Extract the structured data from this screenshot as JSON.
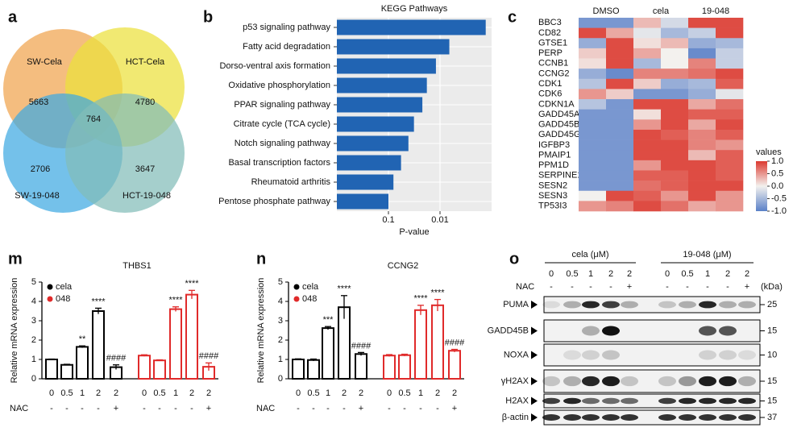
{
  "venn": {
    "panel": "a",
    "sets": [
      {
        "name": "SW-Cela",
        "color": "#f0a44e"
      },
      {
        "name": "HCT-Cela",
        "color": "#ebe03c"
      },
      {
        "name": "SW-19-048",
        "color": "#3ea9e2"
      },
      {
        "name": "HCT-19-048",
        "color": "#82bdb9"
      }
    ],
    "counts": [
      5663,
      4780,
      764,
      2706,
      3647
    ]
  },
  "chart_data": [
    {
      "type": "barh",
      "panel": "b",
      "title": "KEGG Pathways",
      "categories": [
        "p53 signaling pathway",
        "Fatty acid degradation",
        "Dorso-ventral axis formation",
        "Oxidative phosphorylation",
        "PPAR signaling pathway",
        "Citrate cycle (TCA cycle)",
        "Notch signaling pathway",
        "Basal transcription factors",
        "Rheumatoid arthritis",
        "Pentose phosphate pathway"
      ],
      "values": [
        0.0013,
        0.0066,
        0.012,
        0.018,
        0.022,
        0.032,
        0.041,
        0.057,
        0.08,
        0.1
      ],
      "color": "#2164b3",
      "xlabel": "P-value",
      "xscale": "log",
      "xlim": [
        1,
        0.001
      ],
      "xticks": [
        0.1,
        0.01
      ],
      "grid": true
    },
    {
      "type": "heatmap",
      "panel": "c",
      "groups": [
        "DMSO",
        "cela",
        "19-048"
      ],
      "rows": [
        "BBC3",
        "CD82",
        "GTSE1",
        "PERP",
        "CCNB1",
        "CCNG2",
        "CDK1",
        "CDK6",
        "CDKN1A",
        "GADD45A",
        "GADD45B",
        "GADD45G",
        "IGFBP3",
        "PMAIP1",
        "PPM1D",
        "SERPINE1",
        "SESN2",
        "SESN3",
        "TP53I3"
      ],
      "values": [
        [
          -0.8,
          -0.8,
          0.3,
          -0.2,
          0.9,
          0.9
        ],
        [
          0.9,
          0.4,
          -0.1,
          -0.5,
          -0.3,
          0.9
        ],
        [
          -0.6,
          0.9,
          0.1,
          0.3,
          -0.6,
          -0.5
        ],
        [
          0.2,
          0.9,
          0.4,
          0.0,
          -0.9,
          -0.3
        ],
        [
          0.1,
          0.9,
          -0.5,
          0.0,
          0.6,
          -0.3
        ],
        [
          -0.6,
          -0.9,
          0.6,
          0.6,
          0.7,
          0.9
        ],
        [
          -0.4,
          0.9,
          0.2,
          -0.6,
          -0.5,
          0.8
        ],
        [
          0.5,
          0.2,
          -0.8,
          -0.8,
          -0.6,
          -0.1
        ],
        [
          -0.4,
          -0.8,
          0.9,
          0.9,
          0.4,
          0.7
        ],
        [
          -0.8,
          -0.8,
          0.1,
          0.9,
          0.8,
          0.8
        ],
        [
          -0.8,
          -0.8,
          0.5,
          0.9,
          0.4,
          0.9
        ],
        [
          -0.8,
          -0.8,
          0.9,
          0.8,
          0.6,
          0.8
        ],
        [
          -0.8,
          -0.8,
          0.9,
          0.9,
          0.6,
          0.5
        ],
        [
          -0.8,
          -0.8,
          0.9,
          0.9,
          0.3,
          0.8
        ],
        [
          -0.8,
          -0.8,
          0.5,
          0.9,
          0.9,
          0.8
        ],
        [
          -0.8,
          -0.8,
          0.8,
          0.8,
          0.9,
          0.8
        ],
        [
          -0.8,
          -0.8,
          0.7,
          0.8,
          0.9,
          0.9
        ],
        [
          0.0,
          0.9,
          0.8,
          0.5,
          0.9,
          0.5
        ],
        [
          0.5,
          0.6,
          0.9,
          0.7,
          0.4,
          0.5
        ]
      ],
      "legend_title": "values",
      "clim": [
        -1,
        1
      ],
      "cticks": [
        {
          "value": 1,
          "label": "1.0"
        },
        {
          "value": 0.5,
          "label": "0.5"
        },
        {
          "value": 0,
          "label": "0.0"
        },
        {
          "value": -0.5,
          "label": "-0.5"
        },
        {
          "value": -1,
          "label": "-1.0"
        }
      ],
      "colors": [
        "#5a80c8",
        "#f3f1ee",
        "#dc3a30"
      ]
    },
    {
      "type": "grouped_bar",
      "panel": "m",
      "title": "THBS1",
      "ylabel": "Relative mRNA expression",
      "categories": [
        "0",
        "0.5",
        "1",
        "2",
        "2"
      ],
      "nac_label": "NAC",
      "nac": [
        "-",
        "-",
        "-",
        "-",
        "+"
      ],
      "ylim": [
        0,
        5
      ],
      "yticks": [
        0,
        1,
        2,
        3,
        4,
        5
      ],
      "legend": "upper left",
      "series": [
        {
          "name": "cela",
          "color": "#000000",
          "values": [
            1,
            0.72,
            1.65,
            3.5,
            0.6
          ],
          "errors": [
            0.02,
            0.03,
            0.05,
            0.15,
            0.12
          ],
          "significance": [
            null,
            null,
            "**",
            "****",
            "####"
          ]
        },
        {
          "name": "048",
          "color": "#e02a2a",
          "values": [
            1.2,
            0.95,
            3.6,
            4.35,
            0.62
          ],
          "errors": [
            0.04,
            0.03,
            0.12,
            0.22,
            0.2
          ],
          "significance": [
            null,
            null,
            "****",
            "****",
            "####"
          ]
        }
      ]
    },
    {
      "type": "grouped_bar",
      "panel": "n",
      "title": "CCNG2",
      "ylabel": "Relative mRNA expression",
      "categories": [
        "0",
        "0.5",
        "1",
        "2",
        "2"
      ],
      "nac_label": "NAC",
      "nac": [
        "-",
        "-",
        "-",
        "-",
        "+"
      ],
      "ylim": [
        0,
        5
      ],
      "yticks": [
        0,
        1,
        2,
        3,
        4,
        5
      ],
      "legend": "upper left",
      "series": [
        {
          "name": "cela",
          "color": "#000000",
          "values": [
            1,
            0.97,
            2.62,
            3.7,
            1.28
          ],
          "errors": [
            0.03,
            0.05,
            0.08,
            0.6,
            0.08
          ],
          "significance": [
            null,
            null,
            "***",
            "****",
            "####"
          ]
        },
        {
          "name": "048",
          "color": "#e02a2a",
          "values": [
            1.2,
            1.22,
            3.55,
            3.8,
            1.45
          ],
          "errors": [
            0.05,
            0.05,
            0.25,
            0.3,
            0.07
          ],
          "significance": [
            null,
            null,
            "****",
            "****",
            "####"
          ]
        }
      ]
    }
  ],
  "blot": {
    "panel": "o",
    "groups": [
      "cela (μM)",
      "19-048 (μM)"
    ],
    "lanes": [
      "0",
      "0.5",
      "1",
      "2",
      "2"
    ],
    "nac_label": "NAC",
    "nac": [
      "-",
      "-",
      "-",
      "-",
      "+"
    ],
    "kda_label": "(kDa)",
    "proteins": [
      {
        "name": "PUMA",
        "kda": 25
      },
      {
        "name": "GADD45B",
        "kda": 15
      },
      {
        "name": "NOXA",
        "kda": 10
      },
      {
        "name": "γH2AX",
        "kda": 15
      },
      {
        "name": "H2AX",
        "kda": 15
      },
      {
        "name": "β-actin",
        "kda": 37
      }
    ]
  }
}
